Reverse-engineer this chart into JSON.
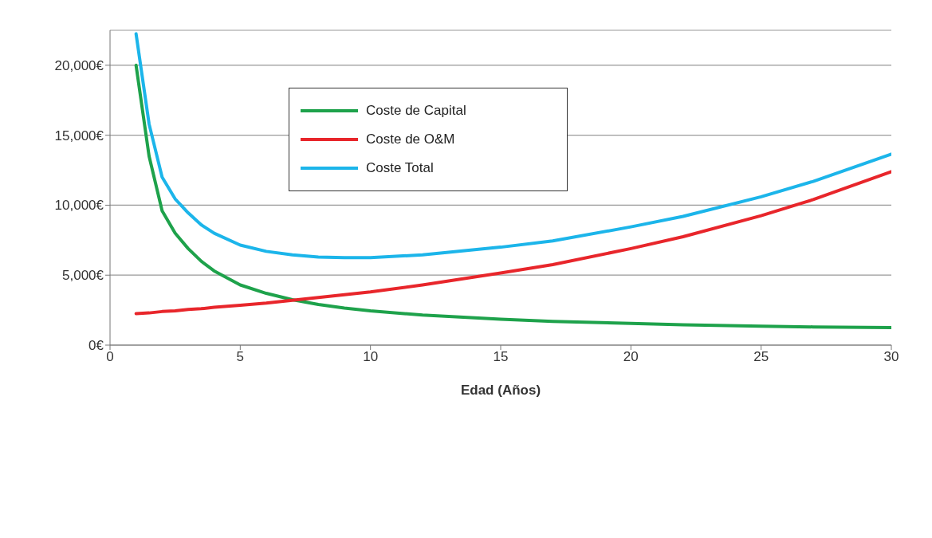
{
  "chart_data": {
    "type": "line",
    "xlabel": "Edad (Años)",
    "x": [
      1,
      1.5,
      2,
      2.5,
      3,
      3.5,
      4,
      5,
      6,
      7,
      8,
      9,
      10,
      12,
      15,
      17,
      20,
      22,
      25,
      27,
      30
    ],
    "series": [
      {
        "name": "Coste de Capital",
        "color": "#1ea24b",
        "values": [
          20000,
          13500,
          9600,
          8000,
          6900,
          6000,
          5300,
          4300,
          3700,
          3250,
          2900,
          2650,
          2450,
          2150,
          1850,
          1700,
          1550,
          1450,
          1350,
          1300,
          1250
        ]
      },
      {
        "name": "Coste de O&M",
        "color": "#e8262b",
        "values": [
          2250,
          2300,
          2400,
          2450,
          2550,
          2600,
          2700,
          2850,
          3000,
          3200,
          3400,
          3600,
          3800,
          4300,
          5150,
          5750,
          6900,
          7750,
          9250,
          10400,
          12400
        ]
      },
      {
        "name": "Coste Total",
        "color": "#1cb5ea",
        "values": [
          22250,
          15800,
          12000,
          10450,
          9450,
          8600,
          8000,
          7150,
          6700,
          6450,
          6300,
          6250,
          6250,
          6450,
          7000,
          7450,
          8450,
          9200,
          10600,
          11700,
          13650
        ]
      }
    ],
    "xlim": [
      0,
      30
    ],
    "xticks": [
      0,
      5,
      10,
      15,
      20,
      25,
      30
    ],
    "ylim": [
      0,
      22500
    ],
    "yticks": [
      {
        "value": 0,
        "label": "0€"
      },
      {
        "value": 5000,
        "label": "5,000€"
      },
      {
        "value": 10000,
        "label": "10,000€"
      },
      {
        "value": 15000,
        "label": "15,000€"
      },
      {
        "value": 20000,
        "label": "20,000€"
      }
    ],
    "grid": "y",
    "legend": "top left",
    "marker": "none",
    "line_style": "solid"
  }
}
